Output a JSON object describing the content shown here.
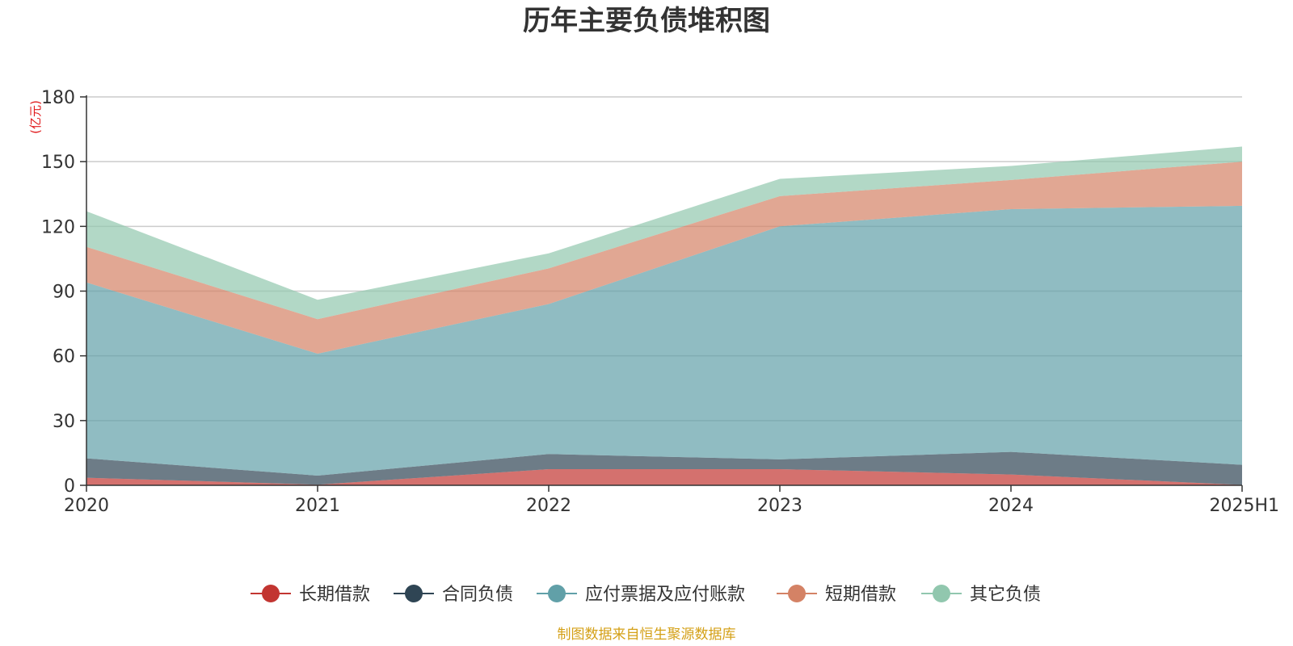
{
  "chart_data": {
    "type": "area",
    "stacked": true,
    "title": "历年主要负债堆积图",
    "unit": "(亿元)",
    "x": [
      "2020",
      "2021",
      "2022",
      "2023",
      "2024",
      "2025H1"
    ],
    "ylim": [
      0,
      180
    ],
    "yticks": [
      "0",
      "30",
      "60",
      "90",
      "120",
      "150",
      "180"
    ],
    "grid": true,
    "legend_position": "bottom",
    "series": [
      {
        "name": "长期借款",
        "color": "#c23531",
        "values": [
          3.5,
          0.3,
          7.5,
          7.5,
          5.0,
          0.2
        ]
      },
      {
        "name": "合同负债",
        "color": "#2f4554",
        "values": [
          9.0,
          4.2,
          7.0,
          4.5,
          10.5,
          9.3
        ]
      },
      {
        "name": "应付票据及应付账款",
        "color": "#61a0a8",
        "values": [
          81.5,
          56.5,
          69.5,
          108.0,
          112.5,
          120.0
        ]
      },
      {
        "name": "短期借款",
        "color": "#d48265",
        "values": [
          16.5,
          16.0,
          16.5,
          14.0,
          13.5,
          20.5
        ]
      },
      {
        "name": "其它负债",
        "color": "#91c7ae",
        "values": [
          16.5,
          9.0,
          7.0,
          8.0,
          6.5,
          7.0
        ]
      }
    ],
    "source": "制图数据来自恒生聚源数据库"
  },
  "colors": {
    "title": "#333333",
    "unit": "#e0191b",
    "source": "#d4a017",
    "grid": "#cccccc",
    "axis": "#333333"
  }
}
